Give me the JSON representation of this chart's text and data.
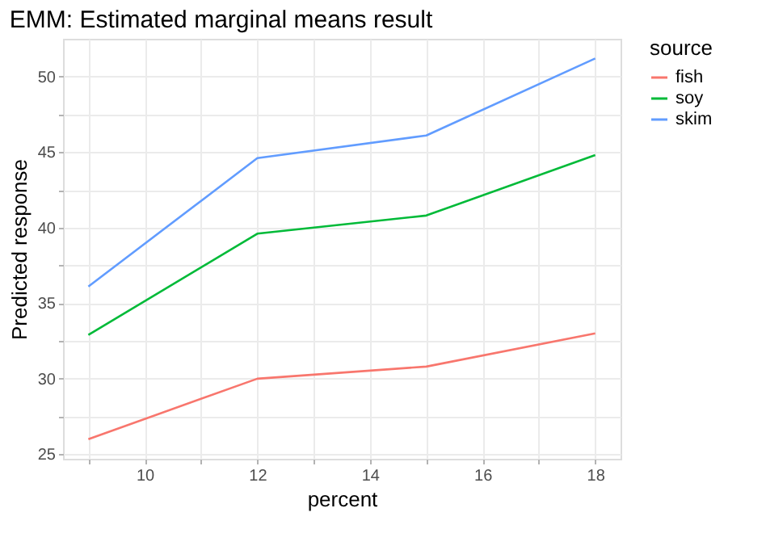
{
  "chart_data": {
    "type": "line",
    "title": "EMM: Estimated marginal means result",
    "xlabel": "percent",
    "ylabel": "Predicted response",
    "legend_title": "source",
    "x": [
      9,
      12,
      15,
      18
    ],
    "series": [
      {
        "name": "fish",
        "color": "#f8766d",
        "values": [
          26.0,
          30.0,
          30.8,
          33.0
        ]
      },
      {
        "name": "soy",
        "color": "#00ba38",
        "values": [
          32.9,
          39.6,
          40.8,
          44.8
        ]
      },
      {
        "name": "skim",
        "color": "#619cff",
        "values": [
          36.1,
          44.6,
          46.1,
          51.2
        ]
      }
    ],
    "xlim": [
      8.55,
      18.45
    ],
    "xticks": [
      {
        "value": 9,
        "label": null
      },
      10,
      {
        "value": 11,
        "label": null
      },
      12,
      {
        "value": 13,
        "label": null
      },
      14,
      {
        "value": 15,
        "label": null
      },
      16,
      {
        "value": 17,
        "label": null
      },
      18
    ],
    "ylim": [
      24.7,
      52.5
    ],
    "yticks": [
      25,
      {
        "value": 27.5,
        "label": null
      },
      30,
      {
        "value": 32.5,
        "label": null
      },
      35,
      {
        "value": 37.5,
        "label": null
      },
      40,
      {
        "value": 42.5,
        "label": null
      },
      45,
      {
        "value": 47.5,
        "label": null
      },
      50
    ],
    "grid": true,
    "legend": "right",
    "marker": "none",
    "line_style": "solid"
  }
}
